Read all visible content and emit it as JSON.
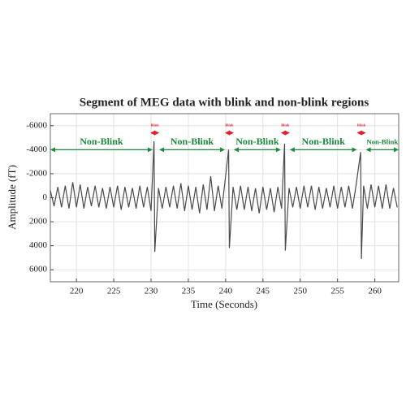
{
  "chart_data": {
    "type": "line",
    "title": "Segment of MEG data with blink and non-blink regions",
    "x_label": "Time (Seconds)",
    "y_label": "Amplitude (fT)",
    "xlim": [
      216.5,
      263.2
    ],
    "ylim": [
      -7000,
      7000
    ],
    "y_reversed": true,
    "xticks": [
      220,
      225,
      230,
      235,
      240,
      245,
      250,
      255,
      260
    ],
    "yticks": [
      -6000,
      -4000,
      -2000,
      0,
      2000,
      4000,
      6000
    ],
    "grid": true,
    "x": [
      216.5,
      217,
      217.5,
      218,
      218.5,
      219,
      219.5,
      220,
      220.5,
      221,
      221.5,
      222,
      222.5,
      223,
      223.5,
      224,
      224.5,
      225,
      225.5,
      226,
      226.5,
      227,
      227.5,
      228,
      228.5,
      229,
      229.5,
      230,
      230.4,
      230.5,
      231,
      231.5,
      232,
      232.5,
      233,
      233.5,
      234,
      234.5,
      235,
      235.5,
      236,
      236.5,
      237,
      237.5,
      238,
      238.5,
      239,
      239.5,
      240.4,
      240.5,
      241,
      241.5,
      242,
      242.5,
      243,
      243.5,
      244,
      244.5,
      245,
      245.5,
      246,
      246.5,
      247,
      247.5,
      247.9,
      248,
      248.5,
      249,
      249.5,
      250,
      250.5,
      251,
      251.5,
      252,
      252.5,
      253,
      253.5,
      254,
      254.5,
      255,
      255.5,
      256,
      256.5,
      257,
      257.5,
      258.1,
      258.2,
      258.5,
      259,
      259.5,
      260,
      260.5,
      261,
      261.5,
      262,
      262.5,
      263
    ],
    "series": [
      {
        "color": "#4a4a4a",
        "values": [
          -600,
          700,
          -900,
          800,
          -1000,
          900,
          -1300,
          800,
          -1100,
          900,
          -900,
          700,
          -1000,
          800,
          -800,
          900,
          -900,
          800,
          -1000,
          1000,
          -900,
          800,
          -800,
          900,
          -1000,
          800,
          -900,
          1100,
          -4700,
          4500,
          -800,
          900,
          -900,
          800,
          -1000,
          900,
          -1200,
          1100,
          -1000,
          1000,
          -900,
          1300,
          -1100,
          1000,
          -1800,
          1100,
          -1000,
          900,
          -4000,
          4200,
          -900,
          1000,
          -1000,
          1000,
          -900,
          1100,
          -800,
          1300,
          -900,
          1000,
          -800,
          1200,
          -900,
          900,
          -4500,
          4400,
          -800,
          800,
          -900,
          900,
          -1000,
          800,
          -1000,
          1000,
          -900,
          900,
          -800,
          800,
          -1000,
          900,
          -900,
          800,
          -1000,
          900,
          -1100,
          -3800,
          5100,
          -1000,
          900,
          -1100,
          800,
          -1000,
          900,
          -1100,
          900,
          -800,
          800
        ]
      }
    ],
    "annotations": [
      {
        "text": "Non-Blink",
        "x0": 216.5,
        "x1": 230.2,
        "y": -4000,
        "color": "#1e8a3c"
      },
      {
        "text": "Blink",
        "x0": 229.9,
        "x1": 231.1,
        "y": -5400,
        "color": "#e0202a"
      },
      {
        "text": "Non-Blink",
        "x0": 231.1,
        "x1": 239.9,
        "y": -4000,
        "color": "#1e8a3c"
      },
      {
        "text": "Blink",
        "x0": 239.9,
        "x1": 241.1,
        "y": -5400,
        "color": "#e0202a"
      },
      {
        "text": "Non-Blink",
        "x0": 241.1,
        "x1": 247.4,
        "y": -4000,
        "color": "#1e8a3c"
      },
      {
        "text": "Blink",
        "x0": 247.4,
        "x1": 248.6,
        "y": -5400,
        "color": "#e0202a"
      },
      {
        "text": "Non-Blink",
        "x0": 248.6,
        "x1": 257.6,
        "y": -4000,
        "color": "#1e8a3c"
      },
      {
        "text": "Blink",
        "x0": 257.6,
        "x1": 258.8,
        "y": -5400,
        "color": "#e0202a"
      },
      {
        "text": "Non-Blink",
        "x0": 258.8,
        "x1": 263.2,
        "y": -4000,
        "color": "#1e8a3c"
      }
    ]
  }
}
